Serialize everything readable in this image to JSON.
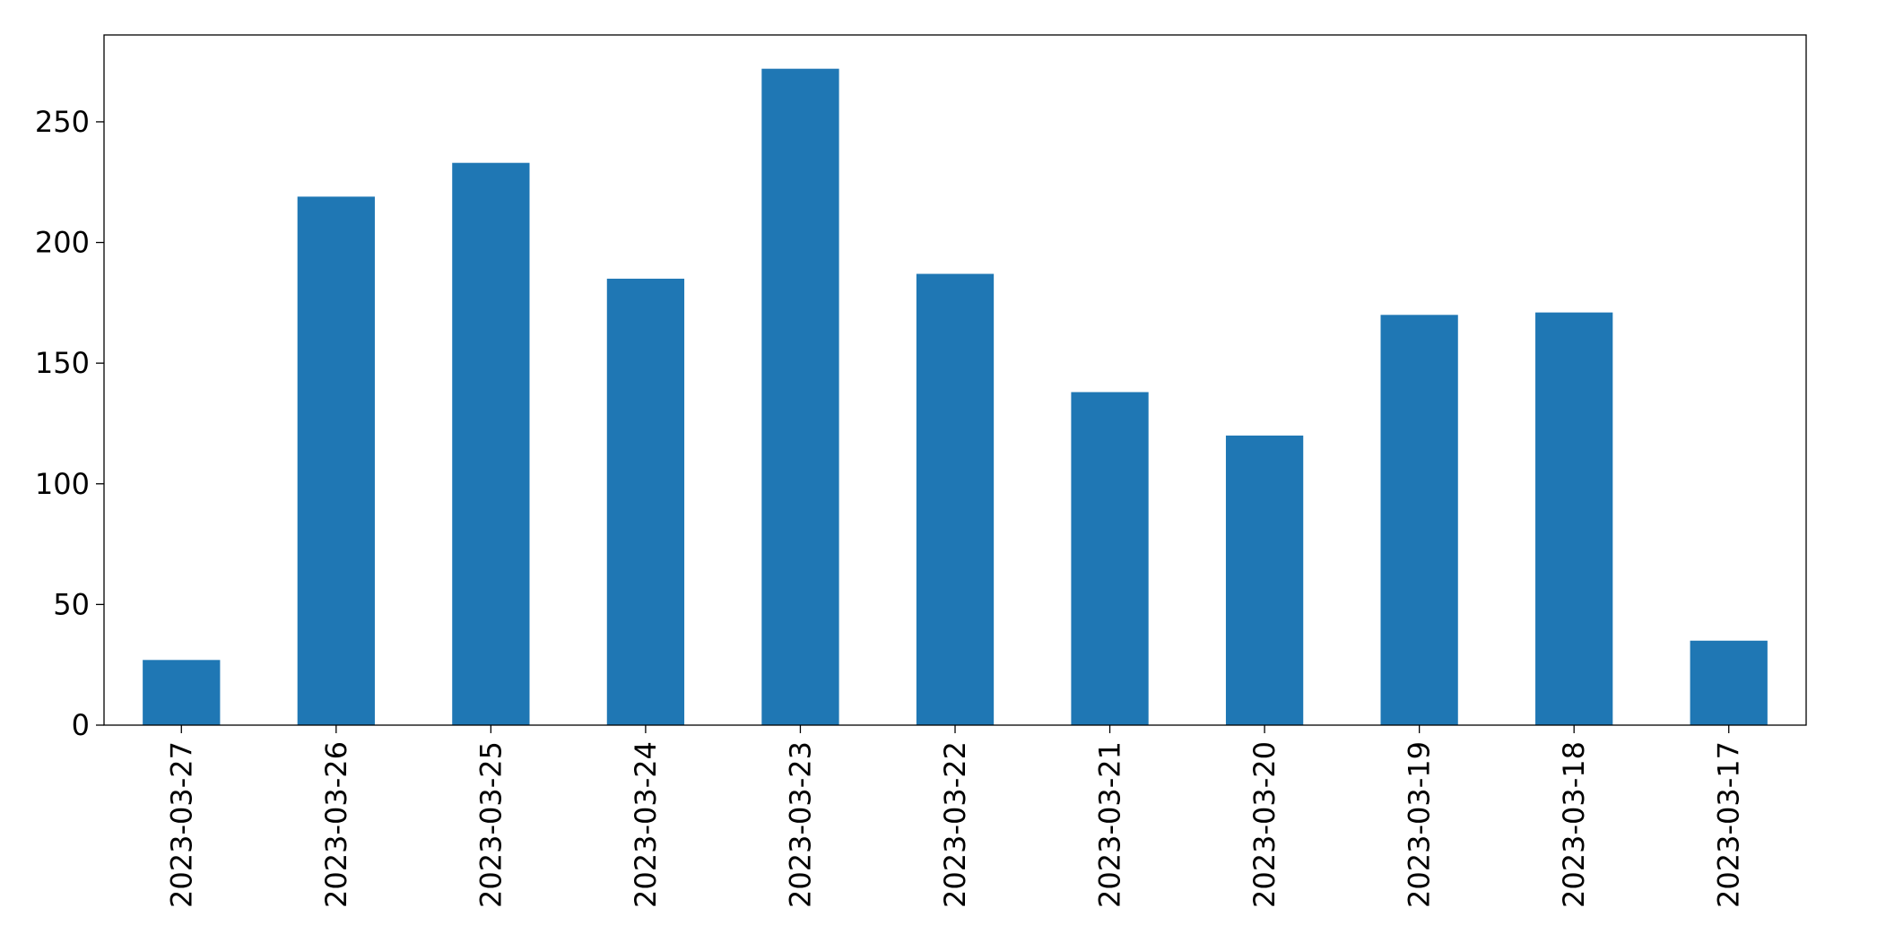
{
  "chart_data": {
    "type": "bar",
    "categories": [
      "2023-03-27",
      "2023-03-26",
      "2023-03-25",
      "2023-03-24",
      "2023-03-23",
      "2023-03-22",
      "2023-03-21",
      "2023-03-20",
      "2023-03-19",
      "2023-03-18",
      "2023-03-17"
    ],
    "values": [
      27,
      219,
      233,
      185,
      272,
      187,
      138,
      120,
      170,
      171,
      35
    ],
    "color": "#1f77b4",
    "ylim": [
      0,
      286
    ],
    "yticks": [
      0,
      50,
      100,
      150,
      200,
      250
    ],
    "grid": false
  }
}
